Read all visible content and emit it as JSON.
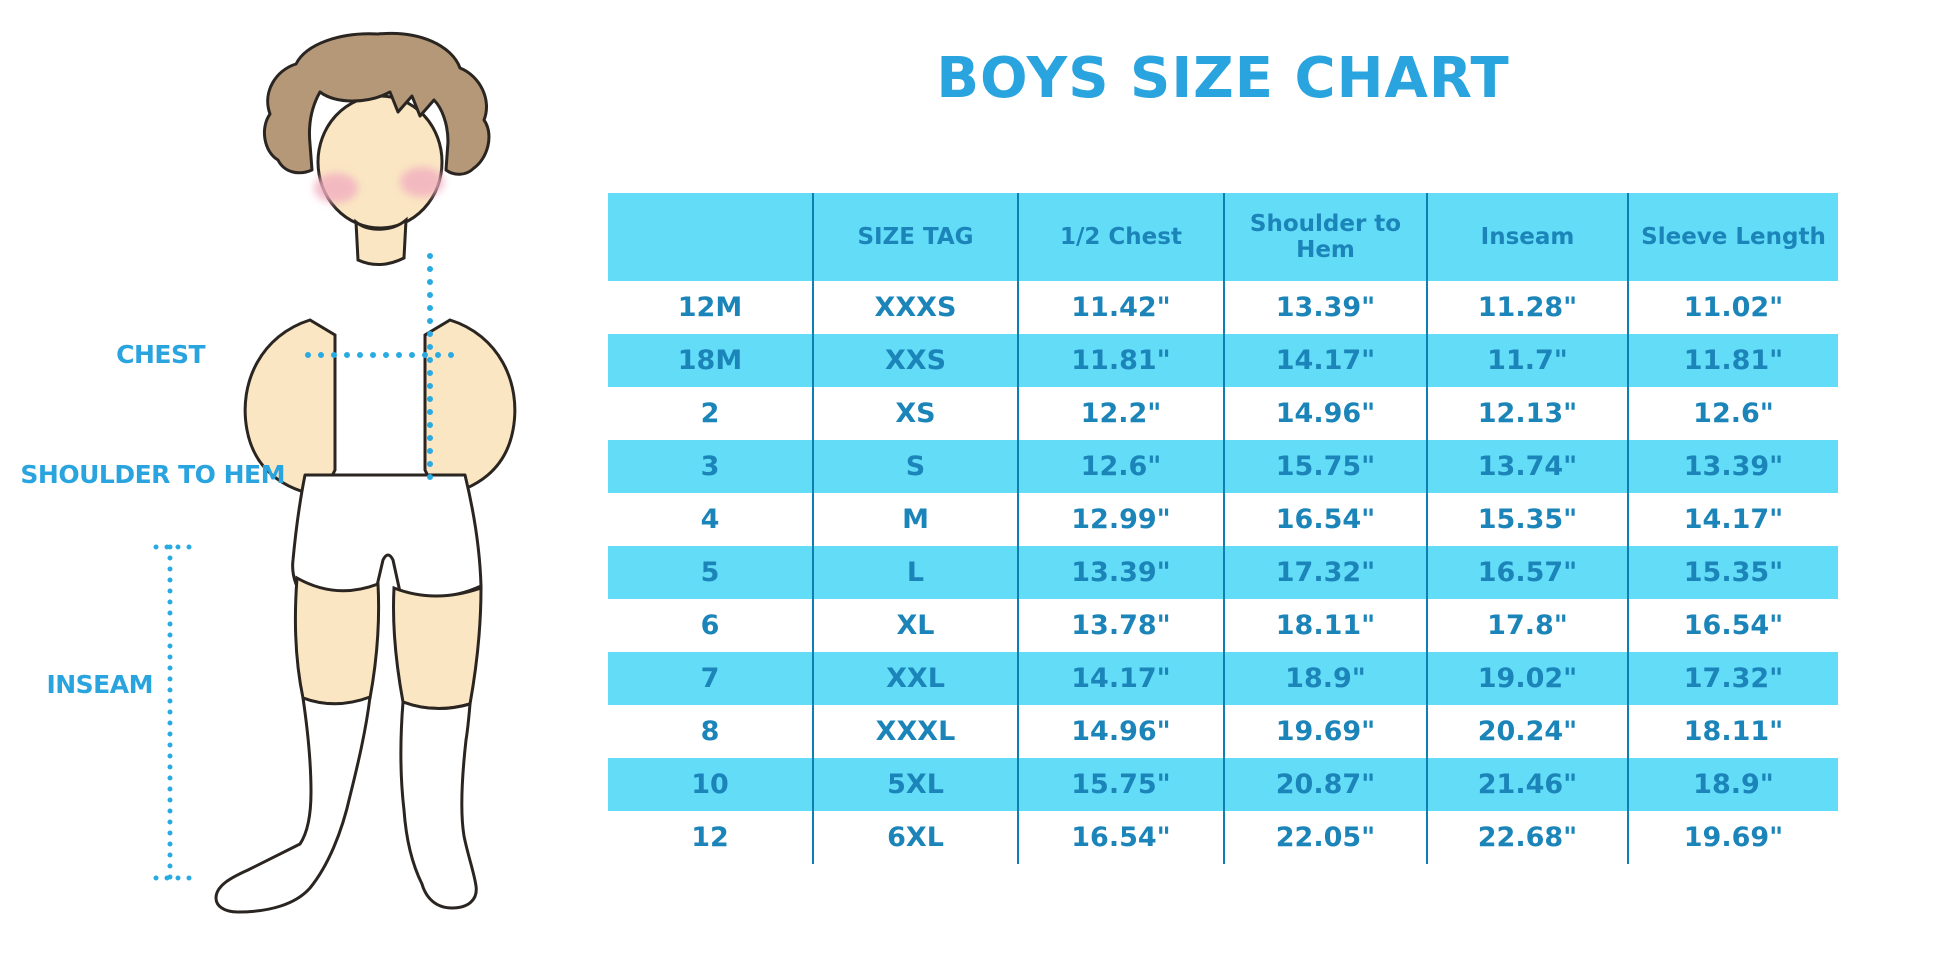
{
  "title": "BOYS SIZE CHART",
  "figure_labels": {
    "chest": "CHEST",
    "shoulder_to_hem": "SHOULDER TO HEM",
    "inseam": "INSEAM"
  },
  "colors": {
    "accent_blue": "#29A4DE",
    "table_text": "#1B84B8",
    "stripe_cyan": "#63DCF8",
    "grid_line": "#0E7FB2",
    "dotted_line": "#29ABE2",
    "skin": "#FAE6C2",
    "hair": "#B49878",
    "blush": "#F2AFC1"
  },
  "chart_data": {
    "type": "table",
    "title": "BOYS SIZE CHART",
    "columns": [
      "",
      "SIZE TAG",
      "1/2 Chest",
      "Shoulder to Hem",
      "Inseam",
      "Sleeve Length"
    ],
    "rows": [
      [
        "12M",
        "XXXS",
        "11.42\"",
        "13.39\"",
        "11.28\"",
        "11.02\""
      ],
      [
        "18M",
        "XXS",
        "11.81\"",
        "14.17\"",
        "11.7\"",
        "11.81\""
      ],
      [
        "2",
        "XS",
        "12.2\"",
        "14.96\"",
        "12.13\"",
        "12.6\""
      ],
      [
        "3",
        "S",
        "12.6\"",
        "15.75\"",
        "13.74\"",
        "13.39\""
      ],
      [
        "4",
        "M",
        "12.99\"",
        "16.54\"",
        "15.35\"",
        "14.17\""
      ],
      [
        "5",
        "L",
        "13.39\"",
        "17.32\"",
        "16.57\"",
        "15.35\""
      ],
      [
        "6",
        "XL",
        "13.78\"",
        "18.11\"",
        "17.8\"",
        "16.54\""
      ],
      [
        "7",
        "XXL",
        "14.17\"",
        "18.9\"",
        "19.02\"",
        "17.32\""
      ],
      [
        "8",
        "XXXL",
        "14.96\"",
        "19.69\"",
        "20.24\"",
        "18.11\""
      ],
      [
        "10",
        "5XL",
        "15.75\"",
        "20.87\"",
        "21.46\"",
        "18.9\""
      ],
      [
        "12",
        "6XL",
        "16.54\"",
        "22.05\"",
        "22.68\"",
        "19.69\""
      ]
    ]
  }
}
